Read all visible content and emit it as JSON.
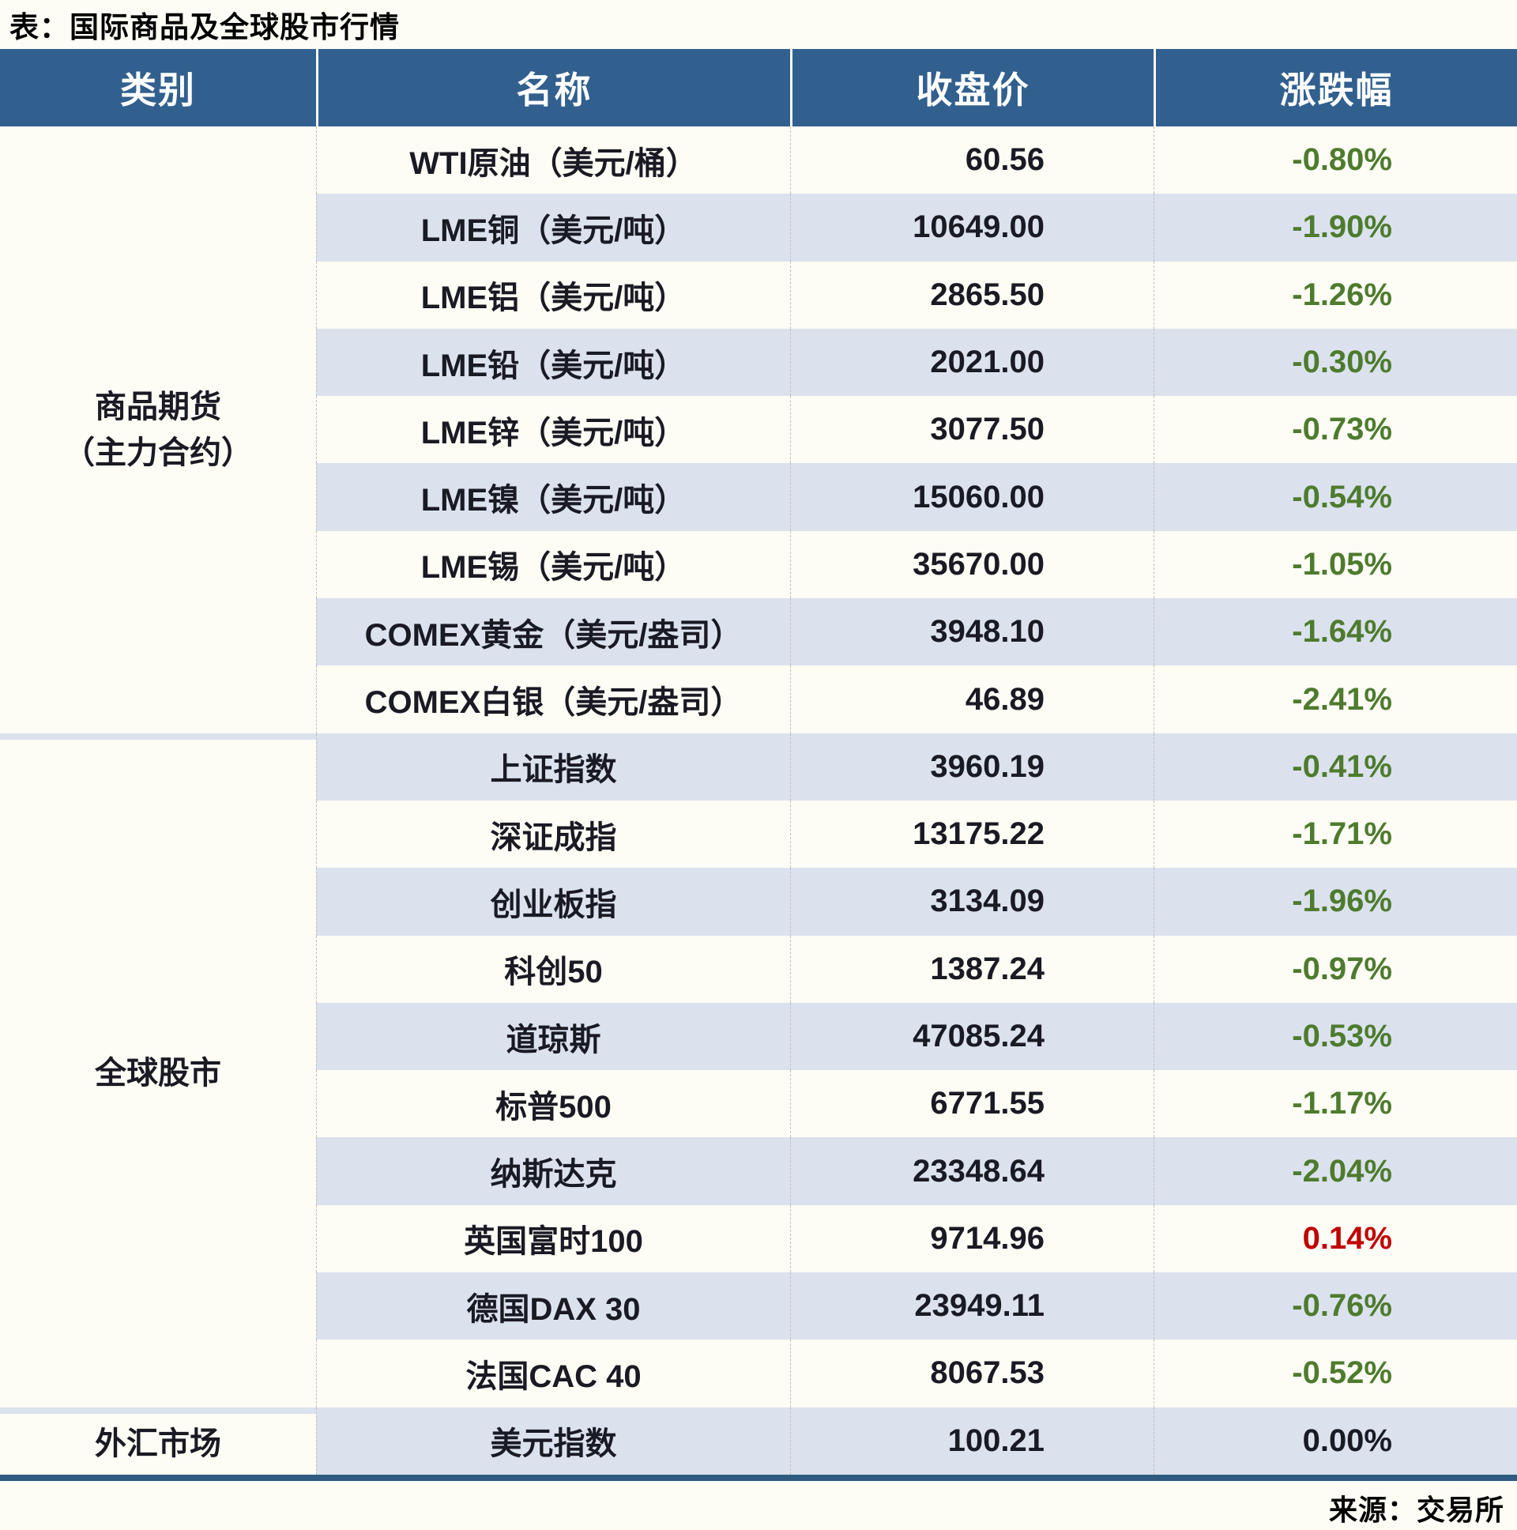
{
  "title": "表：国际商品及全球股市行情",
  "source": "来源：交易所",
  "colors": {
    "header_bg": "#32608E",
    "header_text": "#FFFFFF",
    "stripe": "#DBE2EE",
    "bottom_border": "#315A80",
    "up": "#C00000",
    "down": "#4E7B2E",
    "flat": "#1A1A24",
    "text": "#1A1A24"
  },
  "chart_data": {
    "type": "table",
    "title": "表：国际商品及全球股市行情",
    "columns": [
      "类别",
      "名称",
      "收盘价",
      "涨跌幅"
    ],
    "sections": [
      {
        "category_lines": [
          "商品期货",
          "（主力合约）"
        ],
        "rows": [
          {
            "name": "WTI原油（美元/桶）",
            "close": "60.56",
            "change": "-0.80%",
            "direction": "down"
          },
          {
            "name": "LME铜（美元/吨）",
            "close": "10649.00",
            "change": "-1.90%",
            "direction": "down"
          },
          {
            "name": "LME铝（美元/吨）",
            "close": "2865.50",
            "change": "-1.26%",
            "direction": "down"
          },
          {
            "name": "LME铅（美元/吨）",
            "close": "2021.00",
            "change": "-0.30%",
            "direction": "down"
          },
          {
            "name": "LME锌（美元/吨）",
            "close": "3077.50",
            "change": "-0.73%",
            "direction": "down"
          },
          {
            "name": "LME镍（美元/吨）",
            "close": "15060.00",
            "change": "-0.54%",
            "direction": "down"
          },
          {
            "name": "LME锡（美元/吨）",
            "close": "35670.00",
            "change": "-1.05%",
            "direction": "down"
          },
          {
            "name": "COMEX黄金（美元/盎司）",
            "close": "3948.10",
            "change": "-1.64%",
            "direction": "down"
          },
          {
            "name": "COMEX白银（美元/盎司）",
            "close": "46.89",
            "change": "-2.41%",
            "direction": "down"
          }
        ]
      },
      {
        "category_lines": [
          "全球股市"
        ],
        "rows": [
          {
            "name": "上证指数",
            "close": "3960.19",
            "change": "-0.41%",
            "direction": "down"
          },
          {
            "name": "深证成指",
            "close": "13175.22",
            "change": "-1.71%",
            "direction": "down"
          },
          {
            "name": "创业板指",
            "close": "3134.09",
            "change": "-1.96%",
            "direction": "down"
          },
          {
            "name": "科创50",
            "close": "1387.24",
            "change": "-0.97%",
            "direction": "down"
          },
          {
            "name": "道琼斯",
            "close": "47085.24",
            "change": "-0.53%",
            "direction": "down"
          },
          {
            "name": "标普500",
            "close": "6771.55",
            "change": "-1.17%",
            "direction": "down"
          },
          {
            "name": "纳斯达克",
            "close": "23348.64",
            "change": "-2.04%",
            "direction": "down"
          },
          {
            "name": "英国富时100",
            "close": "9714.96",
            "change": "0.14%",
            "direction": "up"
          },
          {
            "name": "德国DAX 30",
            "close": "23949.11",
            "change": "-0.76%",
            "direction": "down"
          },
          {
            "name": "法国CAC 40",
            "close": "8067.53",
            "change": "-0.52%",
            "direction": "down"
          }
        ]
      },
      {
        "category_lines": [
          "外汇市场"
        ],
        "rows": [
          {
            "name": "美元指数",
            "close": "100.21",
            "change": "0.00%",
            "direction": "flat"
          }
        ]
      }
    ]
  }
}
